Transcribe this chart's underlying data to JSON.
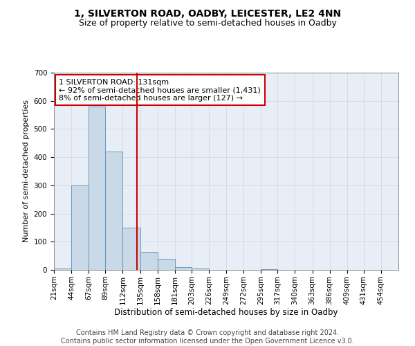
{
  "title": "1, SILVERTON ROAD, OADBY, LEICESTER, LE2 4NN",
  "subtitle": "Size of property relative to semi-detached houses in Oadby",
  "xlabel": "Distribution of semi-detached houses by size in Oadby",
  "ylabel": "Number of semi-detached properties",
  "bar_edges": [
    21,
    44,
    67,
    89,
    112,
    135,
    158,
    181,
    203,
    226,
    249,
    272,
    295,
    317,
    340,
    363,
    386,
    409,
    431,
    454,
    477
  ],
  "bar_heights": [
    5,
    300,
    580,
    420,
    150,
    65,
    40,
    10,
    5,
    0,
    0,
    0,
    2,
    0,
    0,
    0,
    0,
    0,
    0,
    0
  ],
  "bar_color": "#c9d9e8",
  "bar_edgecolor": "#5b8db8",
  "property_sqm": 131,
  "vline_color": "#cc0000",
  "annotation_line1": "1 SILVERTON ROAD: 131sqm",
  "annotation_line2": "← 92% of semi-detached houses are smaller (1,431)",
  "annotation_line3": "8% of semi-detached houses are larger (127) →",
  "annotation_box_color": "#ffffff",
  "annotation_box_edgecolor": "#cc0000",
  "ylim": [
    0,
    700
  ],
  "yticks": [
    0,
    100,
    200,
    300,
    400,
    500,
    600,
    700
  ],
  "grid_color": "#d0d8e8",
  "background_color": "#e8eef5",
  "footer_text": "Contains HM Land Registry data © Crown copyright and database right 2024.\nContains public sector information licensed under the Open Government Licence v3.0.",
  "title_fontsize": 10,
  "subtitle_fontsize": 9,
  "xlabel_fontsize": 8.5,
  "ylabel_fontsize": 8,
  "tick_fontsize": 7.5,
  "annotation_fontsize": 8,
  "footer_fontsize": 7
}
